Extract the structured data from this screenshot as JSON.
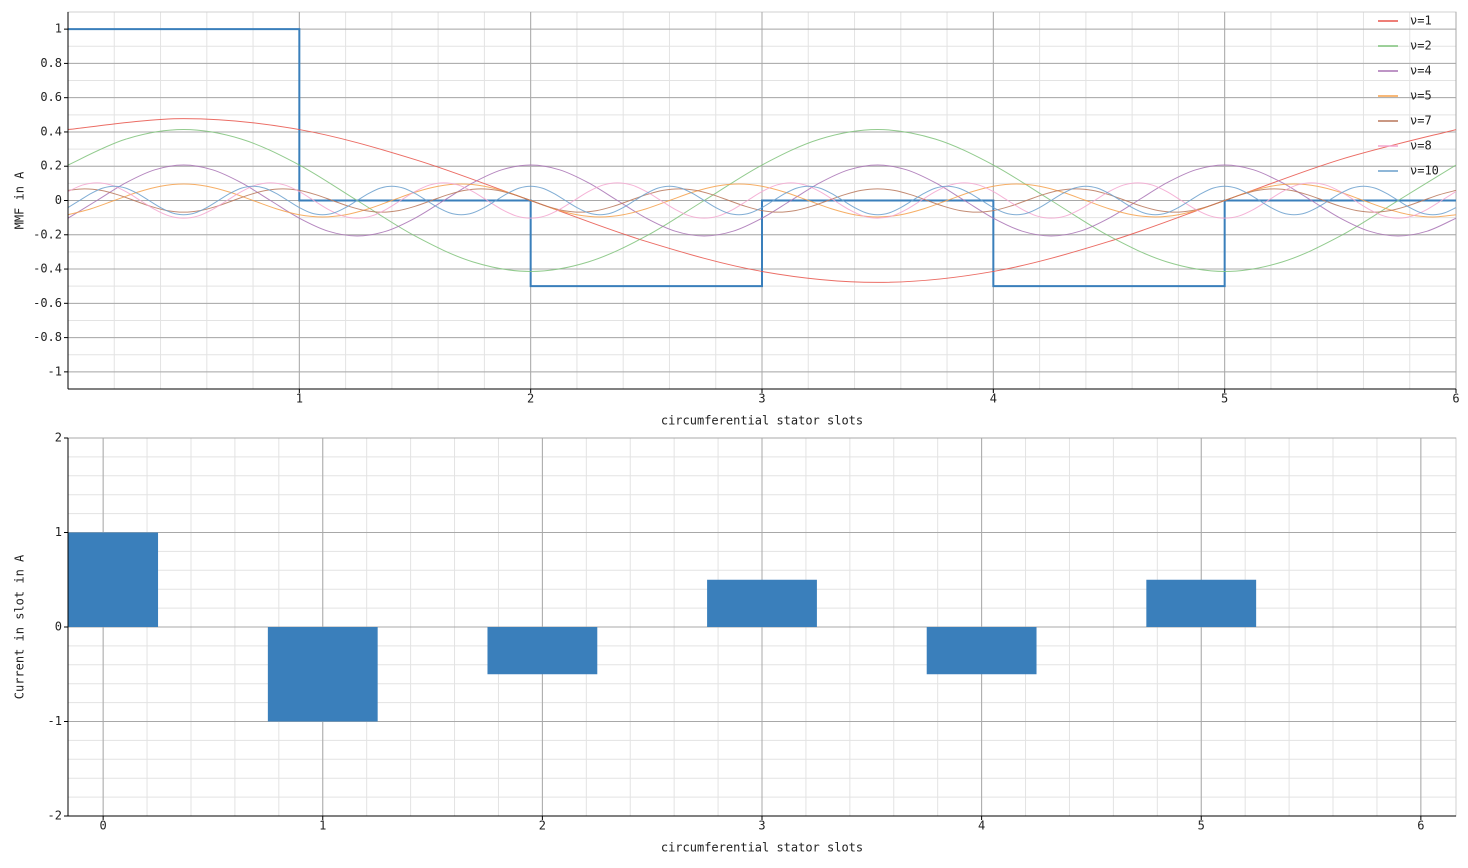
{
  "chart_data": [
    {
      "type": "line",
      "x_label": "circumferential stator slots",
      "y_label": "MMF in A",
      "xlim": [
        0,
        6
      ],
      "ylim": [
        -1.1,
        1.1
      ],
      "xticks": [
        1,
        2,
        3,
        4,
        5,
        6
      ],
      "yticks": [
        -1,
        -0.8,
        -0.6,
        -0.4,
        -0.2,
        0,
        0.2,
        0.4,
        0.6,
        0.8,
        1
      ],
      "grid": true,
      "legend": "upper right",
      "smooth": true,
      "series": [
        {
          "color": "#3a7fbb",
          "x": [
            0,
            1,
            1,
            2,
            2,
            3,
            3,
            4,
            4,
            5,
            5,
            6
          ],
          "values": [
            1,
            1,
            0,
            0,
            -0.5,
            -0.5,
            0,
            0,
            -0.5,
            -0.5,
            0,
            0
          ]
        },
        {
          "name": "ν=1",
          "color": "#e8534a",
          "x": [
            0,
            0.5,
            1,
            1.5,
            2,
            2.5,
            3,
            3.5,
            4,
            4.5,
            5,
            5.5,
            6
          ],
          "values": [
            0.414,
            0.478,
            0.414,
            0.239,
            0,
            -0.239,
            -0.414,
            -0.478,
            -0.414,
            -0.239,
            0,
            0.239,
            0.414
          ]
        },
        {
          "name": "ν=2",
          "color": "#7fc27a",
          "x": [
            0,
            0.25,
            0.5,
            0.75,
            1,
            1.25,
            1.5,
            1.75,
            2,
            2.25,
            2.5,
            2.75,
            3,
            3.25,
            3.5,
            3.75,
            4,
            4.25,
            4.5,
            4.75,
            5,
            5.25,
            5.5,
            5.75,
            6
          ],
          "values": [
            0.207,
            0.358,
            0.414,
            0.358,
            0.207,
            0,
            -0.207,
            -0.358,
            -0.414,
            -0.358,
            -0.207,
            0,
            0.207,
            0.358,
            0.414,
            0.358,
            0.207,
            0,
            -0.207,
            -0.358,
            -0.414,
            -0.358,
            -0.207,
            0,
            0.207
          ]
        },
        {
          "name": "ν=4",
          "color": "#a872b4",
          "x": [
            0,
            0.125,
            0.25,
            0.375,
            0.5,
            0.625,
            0.75,
            0.875,
            1,
            1.125,
            1.25,
            1.375,
            1.5,
            1.625,
            1.75,
            1.875,
            2,
            2.125,
            2.25,
            2.375,
            2.5,
            2.625,
            2.75,
            2.875,
            3,
            3.125,
            3.25,
            3.375,
            3.5,
            3.625,
            3.75,
            3.875,
            4,
            4.125,
            4.25,
            4.375,
            4.5,
            4.625,
            4.75,
            4.875,
            5,
            5.125,
            5.25,
            5.375,
            5.5,
            5.625,
            5.75,
            5.875,
            6
          ],
          "values": [
            -0.103,
            0,
            0.103,
            0.179,
            0.207,
            0.179,
            0.103,
            0,
            -0.103,
            -0.179,
            -0.207,
            -0.179,
            -0.103,
            0,
            0.103,
            0.179,
            0.207,
            0.179,
            0.103,
            0,
            -0.103,
            -0.179,
            -0.207,
            -0.179,
            -0.103,
            0,
            0.103,
            0.179,
            0.207,
            0.179,
            0.103,
            0,
            -0.103,
            -0.179,
            -0.207,
            -0.179,
            -0.103,
            0,
            0.103,
            0.179,
            0.207,
            0.179,
            0.103,
            0,
            -0.103,
            -0.179,
            -0.207,
            -0.179,
            -0.103
          ]
        },
        {
          "name": "ν=5",
          "color": "#f5a04a",
          "x": [
            0,
            0.1,
            0.2,
            0.3,
            0.4,
            0.5,
            0.6,
            0.7,
            0.8,
            0.9,
            1,
            1.1,
            1.2,
            1.3,
            1.4,
            1.5,
            1.6,
            1.7,
            1.8,
            1.9,
            2,
            2.1,
            2.2,
            2.3,
            2.4,
            2.5,
            2.6,
            2.7,
            2.8,
            2.9,
            3,
            3.1,
            3.2,
            3.3,
            3.4,
            3.5,
            3.6,
            3.7,
            3.8,
            3.9,
            4,
            4.1,
            4.2,
            4.3,
            4.4,
            4.5,
            4.6,
            4.7,
            4.8,
            4.9,
            5,
            5.1,
            5.2,
            5.3,
            5.4,
            5.5,
            5.6,
            5.7,
            5.8,
            5.9,
            6
          ],
          "values": [
            -0.083,
            -0.048,
            0,
            0.048,
            0.083,
            0.096,
            0.083,
            0.048,
            0,
            -0.048,
            -0.083,
            -0.096,
            -0.083,
            -0.048,
            0,
            0.048,
            0.083,
            0.096,
            0.083,
            0.048,
            0,
            -0.048,
            -0.083,
            -0.096,
            -0.083,
            -0.048,
            0,
            0.048,
            0.083,
            0.096,
            0.083,
            0.048,
            0,
            -0.048,
            -0.083,
            -0.096,
            -0.083,
            -0.048,
            0,
            0.048,
            0.083,
            0.096,
            0.083,
            0.048,
            0,
            -0.048,
            -0.083,
            -0.096,
            -0.083,
            -0.048,
            0,
            0.048,
            0.083,
            0.096,
            0.083,
            0.048,
            0,
            -0.048,
            -0.083,
            -0.096,
            -0.083
          ]
        },
        {
          "name": "ν=7",
          "color": "#b8775a",
          "x": [
            0,
            0.0714,
            0.1429,
            0.2143,
            0.2857,
            0.3571,
            0.4286,
            0.5,
            0.5714,
            0.6429,
            0.7143,
            0.7857,
            0.8571,
            0.9286,
            1,
            1.0714,
            1.1429,
            1.2143,
            1.2857,
            1.3571,
            1.4286,
            1.5,
            1.5714,
            1.6429,
            1.7143,
            1.7857,
            1.8571,
            1.9286,
            2,
            2.0714,
            2.1429,
            2.2143,
            2.2857,
            2.3571,
            2.4286,
            2.5,
            2.5714,
            2.6429,
            2.7143,
            2.7857,
            2.8571,
            2.9286,
            3,
            3.0714,
            3.1429,
            3.2143,
            3.2857,
            3.3571,
            3.4286,
            3.5,
            3.5714,
            3.6429,
            3.7143,
            3.7857,
            3.8571,
            3.9286,
            4,
            4.0714,
            4.1429,
            4.2143,
            4.2857,
            4.3571,
            4.4286,
            4.5,
            4.5714,
            4.6429,
            4.7143,
            4.7857,
            4.8571,
            4.9286,
            5,
            5.0714,
            5.1429,
            5.2143,
            5.2857,
            5.3571,
            5.4286,
            5.5,
            5.5714,
            5.6429,
            5.7143,
            5.7857,
            5.8571,
            5.9286,
            6
          ],
          "values": [
            0.059,
            0.068,
            0.059,
            0.034,
            0,
            -0.034,
            -0.059,
            -0.068,
            -0.059,
            -0.034,
            0,
            0.034,
            0.059,
            0.068,
            0.059,
            0.034,
            0,
            -0.034,
            -0.059,
            -0.068,
            -0.059,
            -0.034,
            0,
            0.034,
            0.059,
            0.068,
            0.059,
            0.034,
            0,
            -0.034,
            -0.059,
            -0.068,
            -0.059,
            -0.034,
            0,
            0.034,
            0.059,
            0.068,
            0.059,
            0.034,
            0,
            -0.034,
            -0.059,
            -0.068,
            -0.059,
            -0.034,
            0,
            0.034,
            0.059,
            0.068,
            0.059,
            0.034,
            0,
            -0.034,
            -0.059,
            -0.068,
            -0.059,
            -0.034,
            0,
            0.034,
            0.059,
            0.068,
            0.059,
            0.034,
            0,
            -0.034,
            -0.059,
            -0.068,
            -0.059,
            -0.034,
            0,
            0.034,
            0.059,
            0.068,
            0.059,
            0.034,
            0,
            -0.034,
            -0.059,
            -0.068,
            -0.059,
            -0.034,
            0,
            0.034,
            0.059
          ]
        },
        {
          "name": "ν=8",
          "color": "#f3a5cf",
          "x": [
            0,
            0.0625,
            0.125,
            0.1875,
            0.25,
            0.3125,
            0.375,
            0.4375,
            0.5,
            0.5625,
            0.625,
            0.6875,
            0.75,
            0.8125,
            0.875,
            0.9375,
            1,
            1.0625,
            1.125,
            1.1875,
            1.25,
            1.3125,
            1.375,
            1.4375,
            1.5,
            1.5625,
            1.625,
            1.6875,
            1.75,
            1.8125,
            1.875,
            1.9375,
            2,
            2.0625,
            2.125,
            2.1875,
            2.25,
            2.3125,
            2.375,
            2.4375,
            2.5,
            2.5625,
            2.625,
            2.6875,
            2.75,
            2.8125,
            2.875,
            2.9375,
            3,
            3.0625,
            3.125,
            3.1875,
            3.25,
            3.3125,
            3.375,
            3.4375,
            3.5,
            3.5625,
            3.625,
            3.6875,
            3.75,
            3.8125,
            3.875,
            3.9375,
            4,
            4.0625,
            4.125,
            4.1875,
            4.25,
            4.3125,
            4.375,
            4.4375,
            4.5,
            4.5625,
            4.625,
            4.6875,
            4.75,
            4.8125,
            4.875,
            4.9375,
            5,
            5.0625,
            5.125,
            5.1875,
            5.25,
            5.3125,
            5.375,
            5.4375,
            5.5,
            5.5625,
            5.625,
            5.6875,
            5.75,
            5.8125,
            5.875,
            5.9375,
            6
          ],
          "values": [
            0.052,
            0.09,
            0.103,
            0.09,
            0.052,
            0,
            -0.052,
            -0.09,
            -0.103,
            -0.09,
            -0.052,
            0,
            0.052,
            0.09,
            0.103,
            0.09,
            0.052,
            0,
            -0.052,
            -0.09,
            -0.103,
            -0.09,
            -0.052,
            0,
            0.052,
            0.09,
            0.103,
            0.09,
            0.052,
            0,
            -0.052,
            -0.09,
            -0.103,
            -0.09,
            -0.052,
            0,
            0.052,
            0.09,
            0.103,
            0.09,
            0.052,
            0,
            -0.052,
            -0.09,
            -0.103,
            -0.09,
            -0.052,
            0,
            0.052,
            0.09,
            0.103,
            0.09,
            0.052,
            0,
            -0.052,
            -0.09,
            -0.103,
            -0.09,
            -0.052,
            0,
            0.052,
            0.09,
            0.103,
            0.09,
            0.052,
            0,
            -0.052,
            -0.09,
            -0.103,
            -0.09,
            -0.052,
            0,
            0.052,
            0.09,
            0.103,
            0.09,
            0.052,
            0,
            -0.052,
            -0.09,
            -0.103,
            -0.09,
            -0.052,
            0,
            0.052,
            0.09,
            0.103,
            0.09,
            0.052,
            0,
            -0.052,
            -0.09,
            -0.103,
            -0.09,
            -0.052,
            0,
            0.052
          ]
        },
        {
          "name": "ν=10",
          "color": "#6a9fcc",
          "x": [
            0,
            0.05,
            0.1,
            0.15,
            0.2,
            0.25,
            0.3,
            0.35,
            0.4,
            0.45,
            0.5,
            0.55,
            0.6,
            0.65,
            0.7,
            0.75,
            0.8,
            0.85,
            0.9,
            0.95,
            1,
            1.05,
            1.1,
            1.15,
            1.2,
            1.25,
            1.3,
            1.35,
            1.4,
            1.45,
            1.5,
            1.55,
            1.6,
            1.65,
            1.7,
            1.75,
            1.8,
            1.85,
            1.9,
            1.95,
            2,
            2.05,
            2.1,
            2.15,
            2.2,
            2.25,
            2.3,
            2.35,
            2.4,
            2.45,
            2.5,
            2.55,
            2.6,
            2.65,
            2.7,
            2.75,
            2.8,
            2.85,
            2.9,
            2.95,
            3,
            3.05,
            3.1,
            3.15,
            3.2,
            3.25,
            3.3,
            3.35,
            3.4,
            3.45,
            3.5,
            3.55,
            3.6,
            3.65,
            3.7,
            3.75,
            3.8,
            3.85,
            3.9,
            3.95,
            4,
            4.05,
            4.1,
            4.15,
            4.2,
            4.25,
            4.3,
            4.35,
            4.4,
            4.45,
            4.5,
            4.55,
            4.6,
            4.65,
            4.7,
            4.75,
            4.8,
            4.85,
            4.9,
            4.95,
            5,
            5.05,
            5.1,
            5.15,
            5.2,
            5.25,
            5.3,
            5.35,
            5.4,
            5.45,
            5.5,
            5.55,
            5.6,
            5.65,
            5.7,
            5.75,
            5.8,
            5.85,
            5.9,
            5.95,
            6
          ],
          "values": [
            -0.041,
            0,
            0.041,
            0.072,
            0.083,
            0.072,
            0.041,
            0,
            -0.041,
            -0.072,
            -0.083,
            -0.072,
            -0.041,
            0,
            0.041,
            0.072,
            0.083,
            0.072,
            0.041,
            0,
            -0.041,
            -0.072,
            -0.083,
            -0.072,
            -0.041,
            0,
            0.041,
            0.072,
            0.083,
            0.072,
            0.041,
            0,
            -0.041,
            -0.072,
            -0.083,
            -0.072,
            -0.041,
            0,
            0.041,
            0.072,
            0.083,
            0.072,
            0.041,
            0,
            -0.041,
            -0.072,
            -0.083,
            -0.072,
            -0.041,
            0,
            0.041,
            0.072,
            0.083,
            0.072,
            0.041,
            0,
            -0.041,
            -0.072,
            -0.083,
            -0.072,
            -0.041,
            0,
            0.041,
            0.072,
            0.083,
            0.072,
            0.041,
            0,
            -0.041,
            -0.072,
            -0.083,
            -0.072,
            -0.041,
            0,
            0.041,
            0.072,
            0.083,
            0.072,
            0.041,
            0,
            -0.041,
            -0.072,
            -0.083,
            -0.072,
            -0.041,
            0,
            0.041,
            0.072,
            0.083,
            0.072,
            0.041,
            0,
            -0.041,
            -0.072,
            -0.083,
            -0.072,
            -0.041,
            0,
            0.041,
            0.072,
            0.083,
            0.072,
            0.041,
            0,
            -0.041,
            -0.072,
            -0.083,
            -0.072,
            -0.041,
            0,
            0.041,
            0.072,
            0.083,
            0.072,
            0.041,
            0,
            -0.041,
            -0.072,
            -0.083,
            -0.072,
            -0.041
          ]
        }
      ]
    },
    {
      "type": "bar",
      "x_label": "circumferential stator slots",
      "y_label": "Current in slot in A",
      "x": [
        0,
        1,
        2,
        3,
        4,
        5
      ],
      "values": [
        1,
        -1,
        -0.5,
        0.5,
        -0.5,
        0.5
      ],
      "bar_width": 0.5,
      "color": "#3a7fbb",
      "xlim": [
        -0.16,
        6.16
      ],
      "ylim": [
        -2,
        2
      ],
      "xticks": [
        0,
        1,
        2,
        3,
        4,
        5,
        6
      ],
      "yticks": [
        -2,
        -1,
        0,
        1,
        2
      ],
      "grid": true
    }
  ]
}
